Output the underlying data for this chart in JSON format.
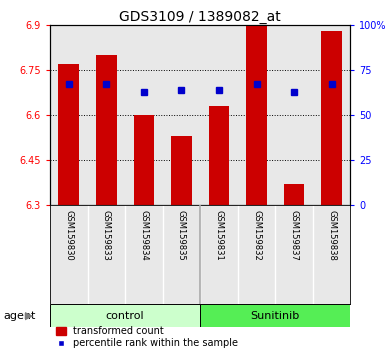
{
  "title": "GDS3109 / 1389082_at",
  "samples": [
    "GSM159830",
    "GSM159833",
    "GSM159834",
    "GSM159835",
    "GSM159831",
    "GSM159832",
    "GSM159837",
    "GSM159838"
  ],
  "bar_values": [
    6.77,
    6.8,
    6.6,
    6.53,
    6.63,
    6.9,
    6.37,
    6.88
  ],
  "percentile_values": [
    67.0,
    67.0,
    63.0,
    64.0,
    64.0,
    67.0,
    63.0,
    67.0
  ],
  "ymin": 6.3,
  "ymax": 6.9,
  "yticks_left": [
    6.3,
    6.45,
    6.6,
    6.75,
    6.9
  ],
  "yticks_right": [
    0,
    25,
    50,
    75,
    100
  ],
  "bar_color": "#cc0000",
  "dot_color": "#0000cc",
  "bar_width": 0.55,
  "groups": [
    {
      "label": "control",
      "indices": [
        0,
        1,
        2,
        3
      ],
      "color": "#ccffcc"
    },
    {
      "label": "Sunitinib",
      "indices": [
        4,
        5,
        6,
        7
      ],
      "color": "#55ee55"
    }
  ],
  "axis_bg": "#e8e8e8",
  "title_fontsize": 10,
  "tick_fontsize": 7,
  "sample_fontsize": 6,
  "legend_fontsize": 7
}
